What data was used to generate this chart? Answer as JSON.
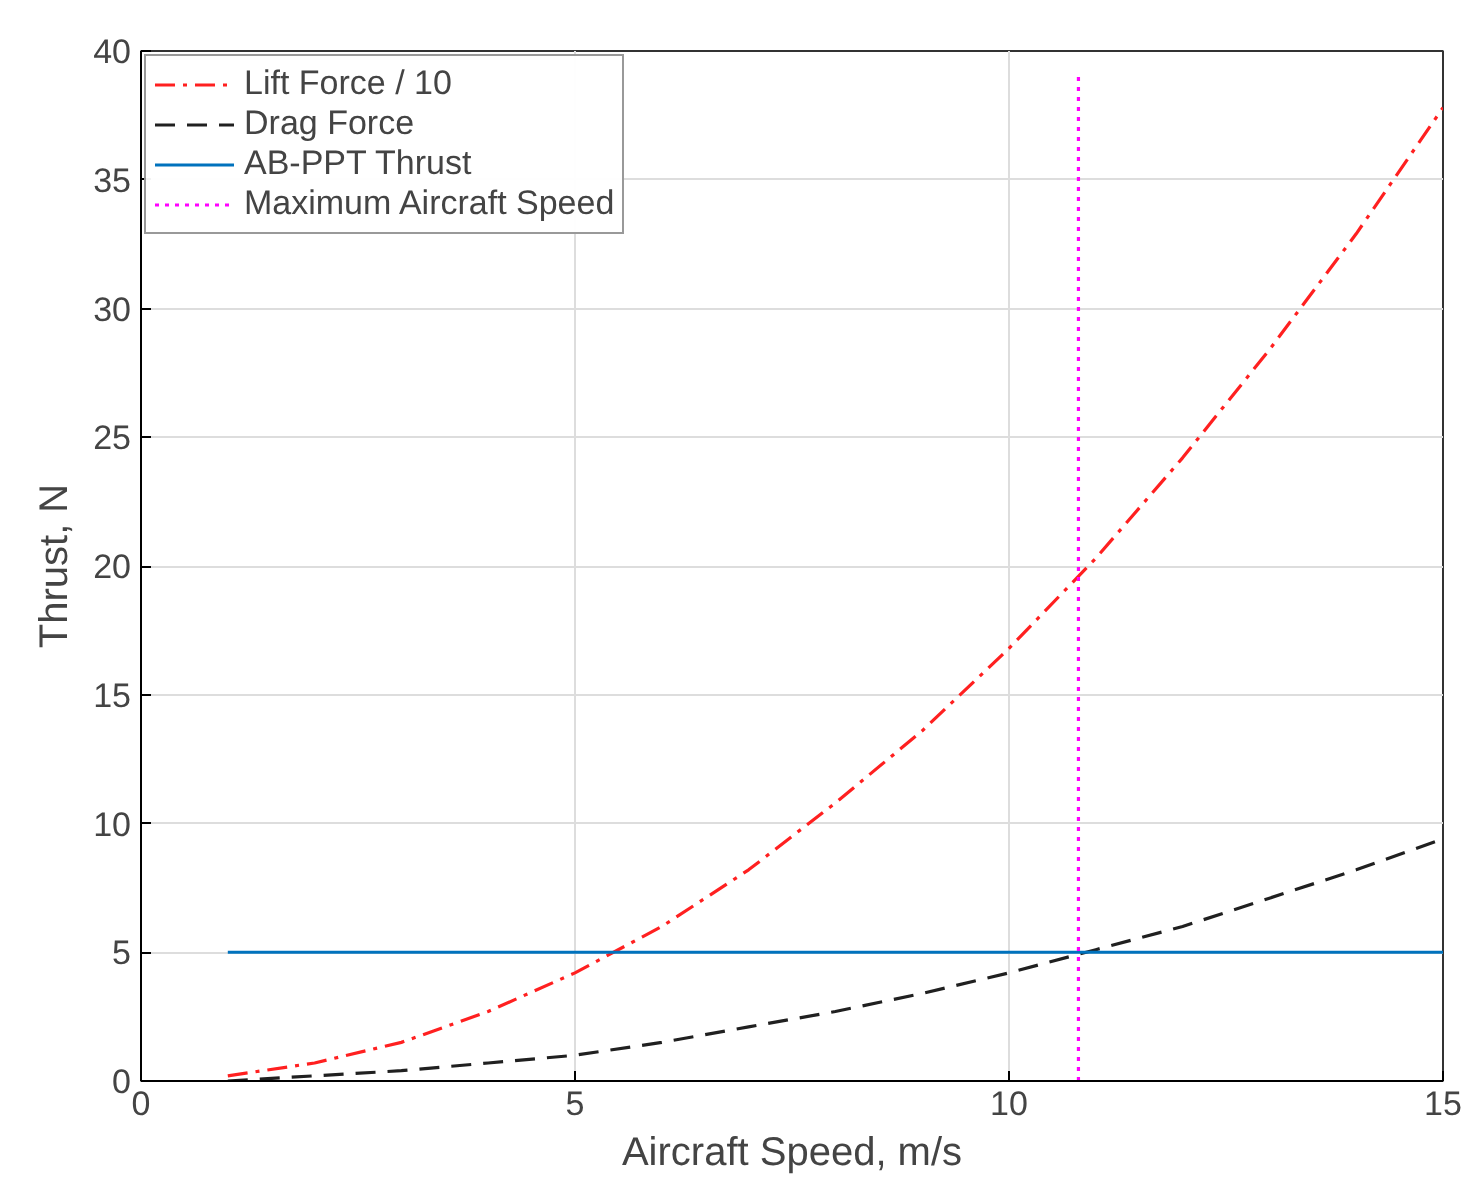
{
  "chart_data": {
    "type": "line",
    "xlabel": "Aircraft Speed, m/s",
    "ylabel": "Thrust, N",
    "xlim": [
      0,
      15
    ],
    "ylim": [
      0,
      40
    ],
    "xticks": [
      0,
      5,
      10,
      15
    ],
    "yticks": [
      0,
      5,
      10,
      15,
      20,
      25,
      30,
      35,
      40
    ],
    "grid": true,
    "legend": "top left",
    "series": [
      {
        "name": "Lift Force / 10",
        "color": "#ff2020",
        "line_style": "dashdot",
        "x": [
          1,
          2,
          3,
          4,
          5,
          6,
          7,
          8,
          9,
          10,
          11,
          12,
          13,
          14,
          15
        ],
        "values": [
          0.2,
          0.7,
          1.5,
          2.7,
          4.2,
          6.0,
          8.2,
          10.8,
          13.6,
          16.8,
          20.3,
          24.2,
          28.4,
          32.9,
          37.8
        ]
      },
      {
        "name": "Drag Force",
        "color": "#202020",
        "line_style": "dashed",
        "x": [
          1,
          2,
          3,
          4,
          5,
          6,
          7,
          8,
          9,
          10,
          11,
          12,
          13,
          14,
          15
        ],
        "values": [
          0.0,
          0.2,
          0.4,
          0.7,
          1.0,
          1.5,
          2.1,
          2.7,
          3.4,
          4.2,
          5.1,
          6.0,
          7.1,
          8.2,
          9.4
        ]
      },
      {
        "name": "AB-PPT Thrust",
        "color": "#0072bd",
        "line_style": "solid",
        "x": [
          1,
          15
        ],
        "values": [
          5,
          5
        ]
      },
      {
        "name": "Maximum Aircraft Speed",
        "color": "#ff00ff",
        "line_style": "dotted",
        "x": [
          10.8,
          10.8
        ],
        "values": [
          0,
          39
        ]
      }
    ]
  }
}
